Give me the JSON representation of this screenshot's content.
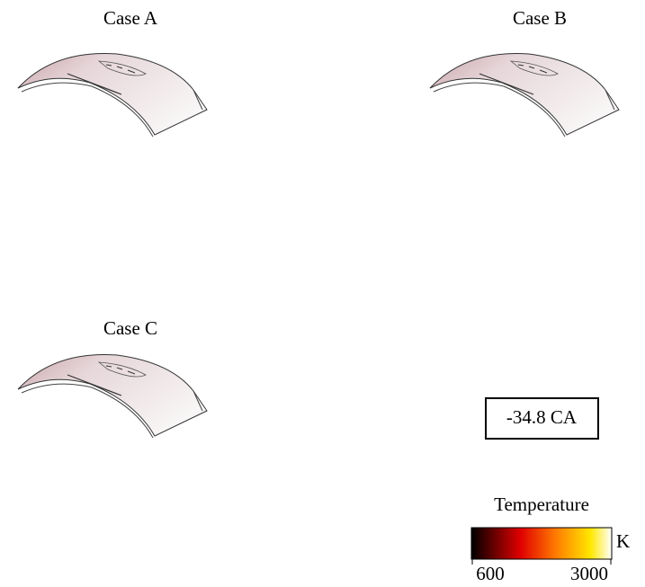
{
  "panels": [
    {
      "label": "Case A"
    },
    {
      "label": "Case B"
    },
    {
      "label": "Case C"
    }
  ],
  "crank_angle_label": "-34.8 CA",
  "colorbar": {
    "title": "Temperature",
    "unit": "K",
    "min": 600,
    "max": 3000
  }
}
